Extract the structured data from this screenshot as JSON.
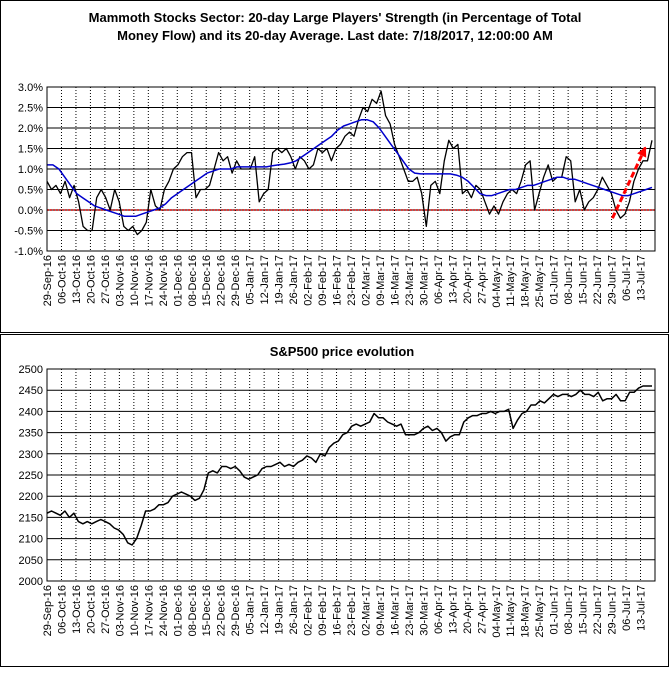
{
  "chart_data": [
    {
      "type": "line",
      "title_line1": "Mammoth Stocks Sector: 20-day Large Players' Strength (in Percentage of Total",
      "title_line2": "Money Flow) and its 20-day Average. Last date: 7/18/2017, 12:00:00 AM",
      "ylim": [
        -1.0,
        3.0
      ],
      "y_ticks": [
        "3.0%",
        "2.5%",
        "2.0%",
        "1.5%",
        "1.0%",
        "0.5%",
        "0.0%",
        "-0.5%",
        "-1.0%"
      ],
      "y_tick_values": [
        3.0,
        2.5,
        2.0,
        1.5,
        1.0,
        0.5,
        0.0,
        -0.5,
        -1.0
      ],
      "grid": true,
      "x_labels": [
        "29-Sep-16",
        "06-Oct-16",
        "13-Oct-16",
        "20-Oct-16",
        "27-Oct-16",
        "03-Nov-16",
        "10-Nov-16",
        "17-Nov-16",
        "24-Nov-16",
        "01-Dec-16",
        "08-Dec-16",
        "15-Dec-16",
        "22-Dec-16",
        "29-Dec-16",
        "05-Jan-17",
        "12-Jan-17",
        "19-Jan-17",
        "26-Jan-17",
        "02-Feb-17",
        "09-Feb-17",
        "16-Feb-17",
        "23-Feb-17",
        "02-Mar-17",
        "09-Mar-17",
        "16-Mar-17",
        "23-Mar-17",
        "30-Mar-17",
        "06-Apr-17",
        "13-Apr-17",
        "20-Apr-17",
        "27-Apr-17",
        "04-May-17",
        "11-May-17",
        "18-May-17",
        "25-May-17",
        "01-Jun-17",
        "08-Jun-17",
        "15-Jun-17",
        "22-Jun-17",
        "29-Jun-17",
        "06-Jul-17",
        "13-Jul-17"
      ],
      "series": [
        {
          "color": "#000000",
          "values": [
            0.7,
            0.5,
            0.6,
            0.4,
            0.7,
            0.3,
            0.6,
            0.2,
            -0.4,
            -0.5,
            -0.5,
            0.3,
            0.5,
            0.3,
            0.0,
            0.5,
            0.2,
            -0.4,
            -0.5,
            -0.4,
            -0.6,
            -0.5,
            -0.3,
            0.5,
            0.1,
            0.0,
            0.5,
            0.7,
            1.0,
            1.1,
            1.3,
            1.4,
            1.4,
            0.3,
            0.5,
            0.5,
            0.6,
            1.0,
            1.4,
            1.2,
            1.3,
            0.9,
            1.2,
            1.0,
            1.0,
            1.0,
            1.3,
            0.2,
            0.4,
            0.5,
            1.4,
            1.5,
            1.4,
            1.5,
            1.3,
            1.0,
            1.3,
            1.2,
            1.0,
            1.1,
            1.5,
            1.4,
            1.5,
            1.2,
            1.5,
            1.6,
            1.8,
            1.9,
            1.8,
            2.2,
            2.5,
            2.4,
            2.7,
            2.6,
            2.9,
            2.3,
            2.1,
            1.6,
            1.3,
            1.0,
            0.7,
            0.7,
            0.8,
            0.4,
            -0.4,
            0.6,
            0.7,
            0.4,
            1.2,
            1.7,
            1.5,
            1.6,
            0.4,
            0.5,
            0.3,
            0.6,
            0.5,
            0.2,
            -0.1,
            0.1,
            -0.1,
            0.2,
            0.4,
            0.5,
            0.4,
            0.7,
            1.1,
            1.2,
            0.0,
            0.4,
            0.8,
            1.1,
            0.7,
            0.8,
            0.8,
            1.3,
            1.2,
            0.2,
            0.5,
            0.0,
            0.2,
            0.3,
            0.5,
            0.8,
            0.6,
            0.4,
            0.0,
            -0.2,
            -0.1,
            0.2,
            0.7,
            1.0,
            1.2,
            1.2,
            1.7
          ]
        },
        {
          "color": "#0000cc",
          "values": [
            1.1,
            1.1,
            1.0,
            0.8,
            0.6,
            0.4,
            0.3,
            0.2,
            0.1,
            0.05,
            0.0,
            -0.05,
            -0.1,
            -0.15,
            -0.15,
            -0.15,
            -0.1,
            -0.05,
            0.0,
            0.05,
            0.15,
            0.3,
            0.4,
            0.5,
            0.6,
            0.7,
            0.8,
            0.9,
            0.95,
            1.0,
            1.0,
            1.0,
            1.05,
            1.05,
            1.05,
            1.05,
            1.05,
            1.05,
            1.08,
            1.1,
            1.12,
            1.15,
            1.2,
            1.3,
            1.4,
            1.5,
            1.6,
            1.7,
            1.8,
            1.95,
            2.05,
            2.1,
            2.15,
            2.2,
            2.2,
            2.15,
            2.0,
            1.8,
            1.6,
            1.4,
            1.2,
            1.0,
            0.9,
            0.88,
            0.88,
            0.88,
            0.88,
            0.88,
            0.88,
            0.85,
            0.8,
            0.7,
            0.55,
            0.4,
            0.35,
            0.35,
            0.4,
            0.45,
            0.5,
            0.5,
            0.55,
            0.6,
            0.6,
            0.65,
            0.7,
            0.75,
            0.8,
            0.8,
            0.75,
            0.75,
            0.7,
            0.65,
            0.6,
            0.55,
            0.5,
            0.45,
            0.4,
            0.35,
            0.35,
            0.4,
            0.45,
            0.5,
            0.55
          ]
        }
      ],
      "zero_line_color": "#cc0000",
      "trend_arrow_color": "#ff0000"
    },
    {
      "type": "line",
      "title": "S&P500 price evolution",
      "ylim": [
        2000,
        2500
      ],
      "y_ticks": [
        "2500",
        "2450",
        "2400",
        "2350",
        "2300",
        "2250",
        "2200",
        "2150",
        "2100",
        "2050",
        "2000"
      ],
      "y_tick_values": [
        2500,
        2450,
        2400,
        2350,
        2300,
        2250,
        2200,
        2150,
        2100,
        2050,
        2000
      ],
      "grid": true,
      "x_labels": [
        "29-Sep-16",
        "06-Oct-16",
        "13-Oct-16",
        "20-Oct-16",
        "27-Oct-16",
        "03-Nov-16",
        "10-Nov-16",
        "17-Nov-16",
        "24-Nov-16",
        "01-Dec-16",
        "08-Dec-16",
        "15-Dec-16",
        "22-Dec-16",
        "29-Dec-16",
        "05-Jan-17",
        "12-Jan-17",
        "19-Jan-17",
        "26-Jan-17",
        "02-Feb-17",
        "09-Feb-17",
        "16-Feb-17",
        "23-Feb-17",
        "02-Mar-17",
        "09-Mar-17",
        "16-Mar-17",
        "23-Mar-17",
        "30-Mar-17",
        "06-Apr-17",
        "13-Apr-17",
        "20-Apr-17",
        "27-Apr-17",
        "04-May-17",
        "11-May-17",
        "18-May-17",
        "25-May-17",
        "01-Jun-17",
        "08-Jun-17",
        "15-Jun-17",
        "22-Jun-17",
        "29-Jun-17",
        "06-Jul-17",
        "13-Jul-17"
      ],
      "series": [
        {
          "color": "#000000",
          "values": [
            2160,
            2165,
            2160,
            2155,
            2165,
            2150,
            2160,
            2140,
            2135,
            2140,
            2135,
            2140,
            2145,
            2140,
            2135,
            2125,
            2120,
            2110,
            2090,
            2085,
            2100,
            2130,
            2165,
            2165,
            2170,
            2180,
            2180,
            2185,
            2200,
            2205,
            2210,
            2205,
            2200,
            2190,
            2195,
            2215,
            2255,
            2260,
            2255,
            2270,
            2270,
            2265,
            2270,
            2260,
            2245,
            2240,
            2245,
            2250,
            2265,
            2270,
            2270,
            2275,
            2280,
            2270,
            2275,
            2270,
            2280,
            2285,
            2295,
            2290,
            2280,
            2300,
            2295,
            2315,
            2325,
            2330,
            2345,
            2350,
            2365,
            2370,
            2365,
            2370,
            2375,
            2395,
            2385,
            2385,
            2375,
            2370,
            2365,
            2370,
            2345,
            2345,
            2345,
            2350,
            2360,
            2365,
            2355,
            2360,
            2350,
            2330,
            2340,
            2345,
            2345,
            2375,
            2385,
            2390,
            2390,
            2395,
            2395,
            2400,
            2395,
            2400,
            2400,
            2405,
            2360,
            2380,
            2395,
            2400,
            2415,
            2415,
            2425,
            2420,
            2430,
            2440,
            2435,
            2440,
            2440,
            2435,
            2440,
            2450,
            2440,
            2440,
            2435,
            2445,
            2425,
            2430,
            2430,
            2440,
            2425,
            2425,
            2445,
            2445,
            2455,
            2460,
            2460,
            2460
          ]
        }
      ]
    }
  ]
}
